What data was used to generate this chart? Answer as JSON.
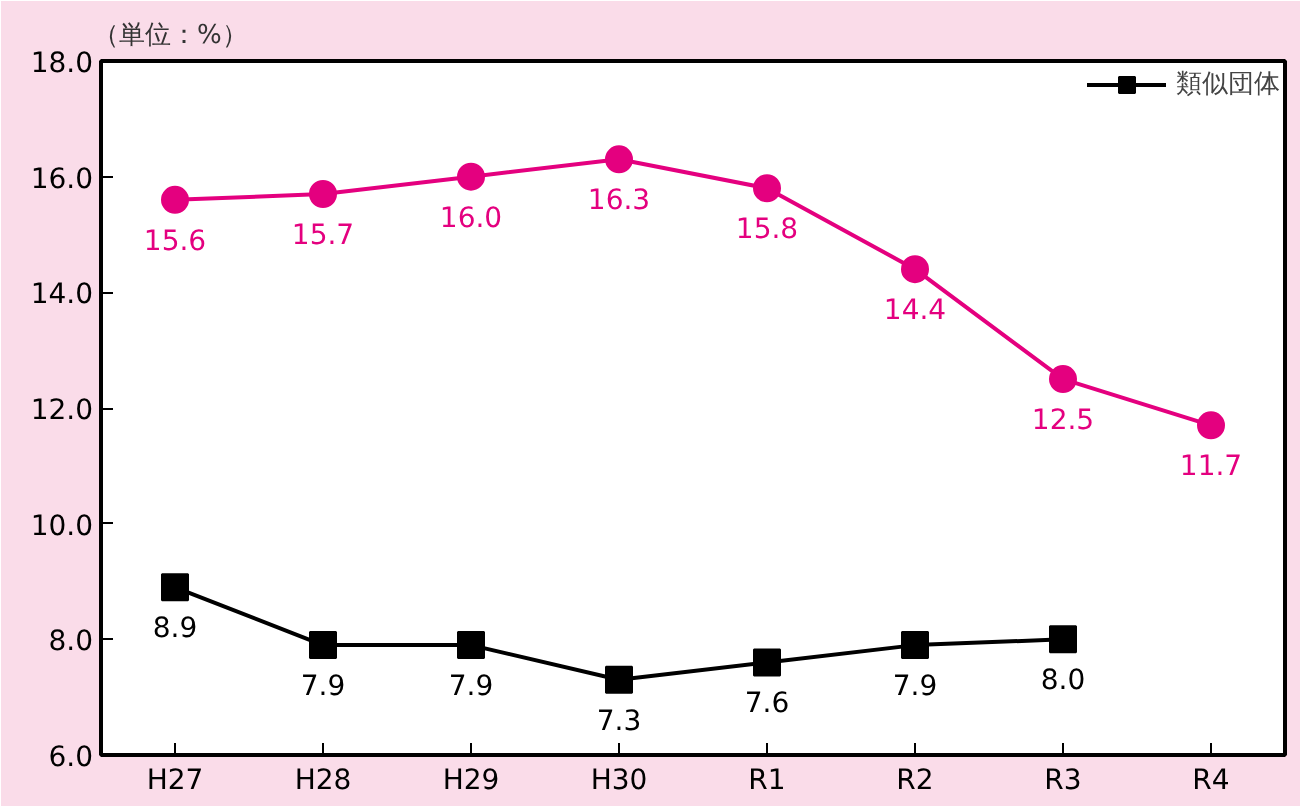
{
  "chart_data": {
    "type": "line",
    "ylabel": "（単位：%）",
    "categories": [
      "H27",
      "H28",
      "H29",
      "H30",
      "R1",
      "R2",
      "R3",
      "R4"
    ],
    "series": [
      {
        "color": "#e4007f",
        "marker": "circle",
        "values": [
          15.6,
          15.7,
          16.0,
          16.3,
          15.8,
          14.4,
          12.5,
          11.7
        ],
        "value_labels": [
          "15.6",
          "15.7",
          "16.0",
          "16.3",
          "15.8",
          "14.4",
          "12.5",
          "11.7"
        ]
      },
      {
        "name": "類似団体",
        "color": "#000000",
        "marker": "square",
        "values": [
          8.9,
          7.9,
          7.9,
          7.3,
          7.6,
          7.9,
          8.0,
          null
        ],
        "value_labels": [
          "8.9",
          "7.9",
          "7.9",
          "7.3",
          "7.6",
          "7.9",
          "8.0",
          null
        ]
      }
    ],
    "ylim": [
      6,
      18
    ],
    "yticks": [
      {
        "value": 6,
        "label": "6.0"
      },
      {
        "value": 8,
        "label": "8.0"
      },
      {
        "value": 10,
        "label": "10.0"
      },
      {
        "value": 12,
        "label": "12.0"
      },
      {
        "value": 14,
        "label": "14.0"
      },
      {
        "value": 16,
        "label": "16.0"
      },
      {
        "value": 18,
        "label": "18.0"
      }
    ],
    "grid": false,
    "legend": "top right",
    "line_style": "solid"
  }
}
